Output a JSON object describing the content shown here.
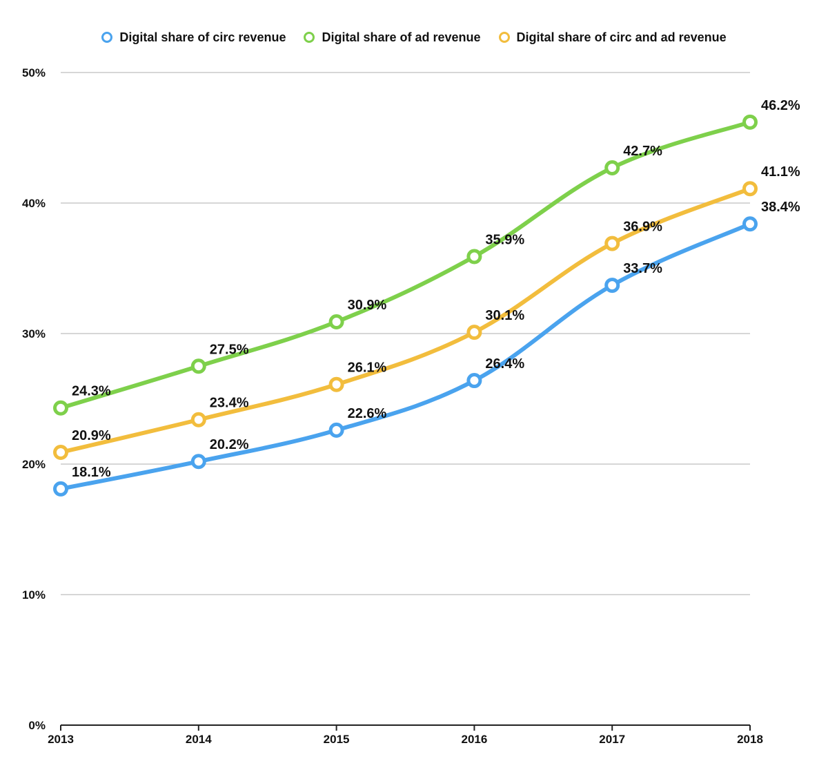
{
  "chart_data": {
    "type": "line",
    "title": "",
    "xlabel": "",
    "ylabel": "",
    "categories": [
      "2013",
      "2014",
      "2015",
      "2016",
      "2017",
      "2018"
    ],
    "ylim": [
      0,
      50
    ],
    "y_ticks": [
      "0%",
      "10%",
      "20%",
      "30%",
      "40%",
      "50%"
    ],
    "grid": true,
    "legend_position": "top",
    "series": [
      {
        "name": "Digital share of circ revenue",
        "color": "#4aa3ee",
        "values": [
          18.1,
          20.2,
          22.6,
          26.4,
          33.7,
          38.4
        ],
        "labels": [
          "18.1%",
          "20.2%",
          "22.6%",
          "26.4%",
          "33.7%",
          "38.4%"
        ]
      },
      {
        "name": "Digital share of ad revenue",
        "color": "#7ed04b",
        "values": [
          24.3,
          27.5,
          30.9,
          35.9,
          42.7,
          46.2
        ],
        "labels": [
          "24.3%",
          "27.5%",
          "30.9%",
          "35.9%",
          "42.7%",
          "46.2%"
        ]
      },
      {
        "name": "Digital share of circ and ad revenue",
        "color": "#f2bd3d",
        "values": [
          20.9,
          23.4,
          26.1,
          30.1,
          36.9,
          41.1
        ],
        "labels": [
          "20.9%",
          "23.4%",
          "26.1%",
          "30.1%",
          "36.9%",
          "41.1%"
        ]
      }
    ]
  }
}
